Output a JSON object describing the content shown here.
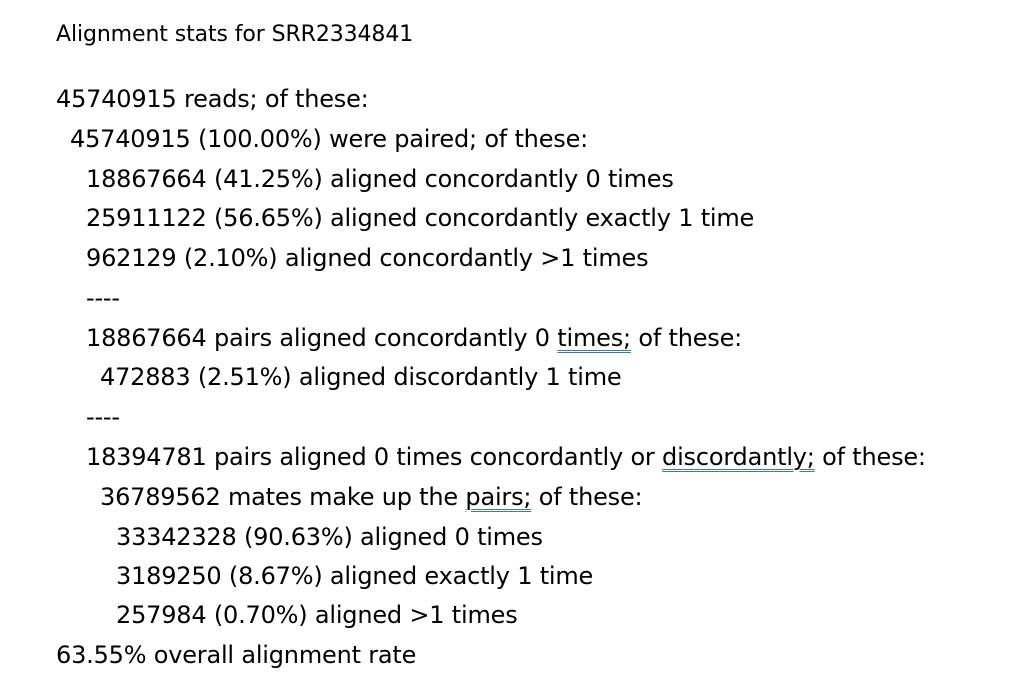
{
  "document": {
    "title": "Alignment stats for SRR2334841",
    "lines": [
      {
        "text": "45740915 reads; of these:"
      },
      {
        "text": "45740915 (100.00%) were paired; of these:"
      },
      {
        "text": "18867664 (41.25%) aligned concordantly 0 times"
      },
      {
        "text": "25911122 (56.65%) aligned concordantly exactly 1 time"
      },
      {
        "text": "962129 (2.10%) aligned concordantly >1 times"
      },
      {
        "text": "----"
      },
      {
        "pre": "18867664 pairs aligned concordantly 0 ",
        "flag": "times;",
        "post": " of these:"
      },
      {
        "text": "472883 (2.51%) aligned discordantly 1 time"
      },
      {
        "text": "----"
      },
      {
        "pre": "18394781 pairs aligned 0 times concordantly or ",
        "flag": "discordantly;",
        "post": " of these:"
      },
      {
        "pre": "36789562 mates make up the ",
        "flag": "pairs;",
        "post": " of these:"
      },
      {
        "text": "33342328 (90.63%) aligned 0 times"
      },
      {
        "text": "3189250 (8.67%) aligned exactly 1 time"
      },
      {
        "text": "257984 (0.70%) aligned >1 times"
      },
      {
        "text": "63.55% overall alignment rate"
      }
    ]
  },
  "colors": {
    "text": "#000000",
    "grammar_underline": "#4472c4",
    "background": "#ffffff"
  }
}
